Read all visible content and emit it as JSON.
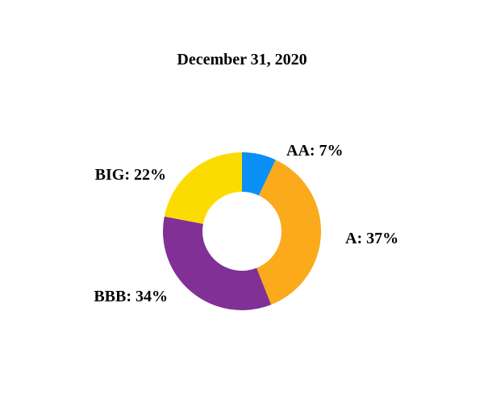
{
  "chart_data": {
    "type": "pie",
    "style": "donut",
    "title": "December 31, 2020",
    "slices": [
      {
        "label": "AA",
        "display": "AA: 7%",
        "value": 7,
        "color": "#0A8FF5"
      },
      {
        "label": "A",
        "display": "A: 37%",
        "value": 37,
        "color": "#FAAA1A"
      },
      {
        "label": "BBB",
        "display": "BBB: 34%",
        "value": 34,
        "color": "#813096"
      },
      {
        "label": "BIG",
        "display": "BIG: 22%",
        "value": 22,
        "color": "#FCDC00"
      }
    ],
    "legend": "none",
    "labels": "outside"
  }
}
